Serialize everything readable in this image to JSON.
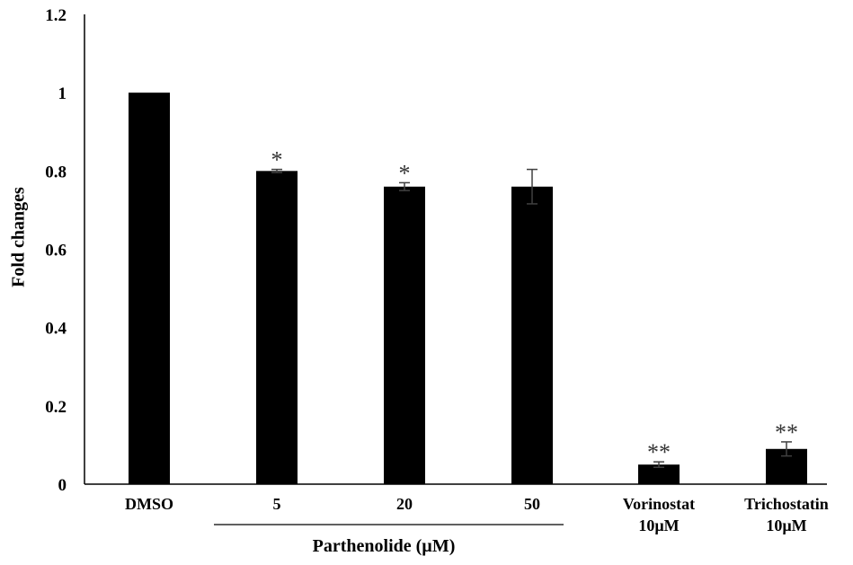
{
  "chart_data": {
    "type": "bar",
    "title": "",
    "ylabel": "Fold changes",
    "ylim": [
      0,
      1.2
    ],
    "yticks": [
      "0",
      "0.2",
      "0.4",
      "0.6",
      "0.8",
      "1",
      "1.2"
    ],
    "yticks_values": [
      0,
      0.2,
      0.4,
      0.6,
      0.8,
      1,
      1.2
    ],
    "categories": [
      [
        "DMSO"
      ],
      [
        "5"
      ],
      [
        "20"
      ],
      [
        "50"
      ],
      [
        "Vorinostat",
        "10µM"
      ],
      [
        "Trichostatin",
        "10µM"
      ]
    ],
    "values": [
      1.0,
      0.8,
      0.76,
      0.76,
      0.05,
      0.09
    ],
    "errors": [
      0.0,
      0.004,
      0.01,
      0.044,
      0.007,
      0.018
    ],
    "significance": [
      "",
      "*",
      "*",
      "",
      "**",
      "**"
    ],
    "group": {
      "label": "Parthenolide (µM)",
      "span": [
        1,
        3
      ]
    },
    "bar_color": "#000000",
    "grid": false,
    "legend": "none"
  }
}
